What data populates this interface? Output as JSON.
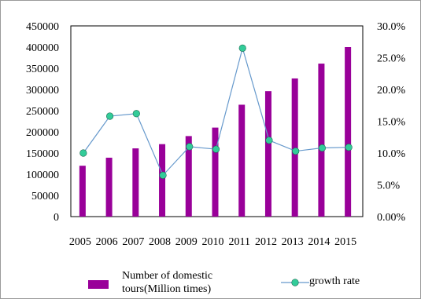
{
  "chart_data": {
    "type": "bar",
    "categories": [
      "2005",
      "2006",
      "2007",
      "2008",
      "2009",
      "2010",
      "2011",
      "2012",
      "2013",
      "2014",
      "2015"
    ],
    "series": [
      {
        "name": "Number of domestic tours(Million times)",
        "type": "bar",
        "axis": "left",
        "color": "#990099",
        "values": [
          120000,
          139000,
          161000,
          171000,
          190000,
          210000,
          264000,
          296000,
          326000,
          361000,
          400000
        ]
      },
      {
        "name": "growth rate",
        "type": "line",
        "axis": "right",
        "line_color": "#6699cc",
        "marker_color": "#33cc99",
        "values": [
          10.0,
          15.8,
          16.2,
          6.5,
          11.0,
          10.6,
          26.5,
          12.0,
          10.3,
          10.8,
          10.9
        ]
      }
    ],
    "y_left": {
      "ticks": [
        "0",
        "50000",
        "100000",
        "150000",
        "200000",
        "250000",
        "300000",
        "350000",
        "400000",
        "450000"
      ],
      "range": [
        0,
        450000
      ]
    },
    "y_right": {
      "ticks": [
        "0.00%",
        "5.0%",
        "10.0%",
        "15.0%",
        "20.0%",
        "25.0%",
        "30.0%"
      ],
      "range": [
        0,
        30
      ]
    },
    "grid": false,
    "legend_placement": "bottom"
  }
}
